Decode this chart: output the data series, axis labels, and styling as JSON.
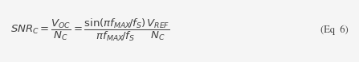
{
  "formula": "$SNR_C = \\dfrac{V_{OC}}{N_C} = \\dfrac{\\sin\\!\\left(\\pi f_{MAX}\\!/f_S\\right)}{\\pi f_{MAX}\\!/f_S} \\dfrac{V_{REF}}{N_C}$",
  "eq_label": "(Eq  6)",
  "bg_color": "#f5f5f5",
  "text_color": "#404040",
  "fontsize": 9.5,
  "eq_fontsize": 9,
  "figsize": [
    4.47,
    0.78
  ],
  "dpi": 100
}
